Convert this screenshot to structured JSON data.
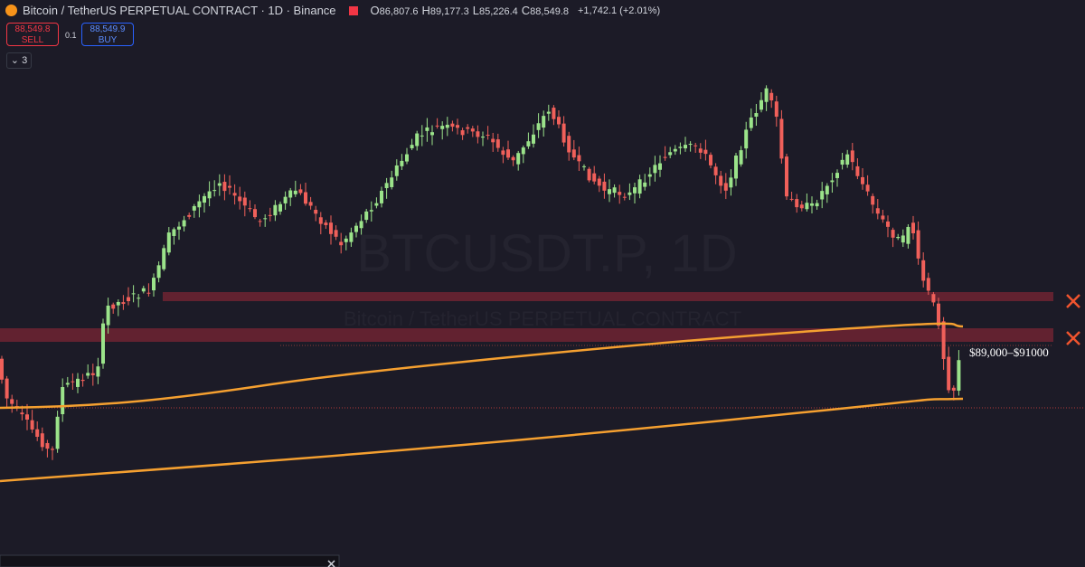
{
  "header": {
    "symbol": "Bitcoin / TetherUS PERPETUAL CONTRACT · 1D · Binance",
    "ohlc": [
      {
        "label": "O",
        "value": "86,807.6"
      },
      {
        "label": "H",
        "value": "89,177.3"
      },
      {
        "label": "L",
        "value": "85,226.4"
      },
      {
        "label": "C",
        "value": "88,549.8"
      }
    ],
    "change": "+1,742.1 (+2.01%)"
  },
  "trade": {
    "sell_price": "88,549.8",
    "sell_label": "SELL",
    "spread": "0.1",
    "buy_price": "88,549.9",
    "buy_label": "BUY"
  },
  "indicators_toggle": "3",
  "watermark": {
    "title": "BTCUSDT.P, 1D",
    "subtitle": "Bitcoin / TetherUS PERPETUAL CONTRACT"
  },
  "annotation": "$89,000–$91000"
}
